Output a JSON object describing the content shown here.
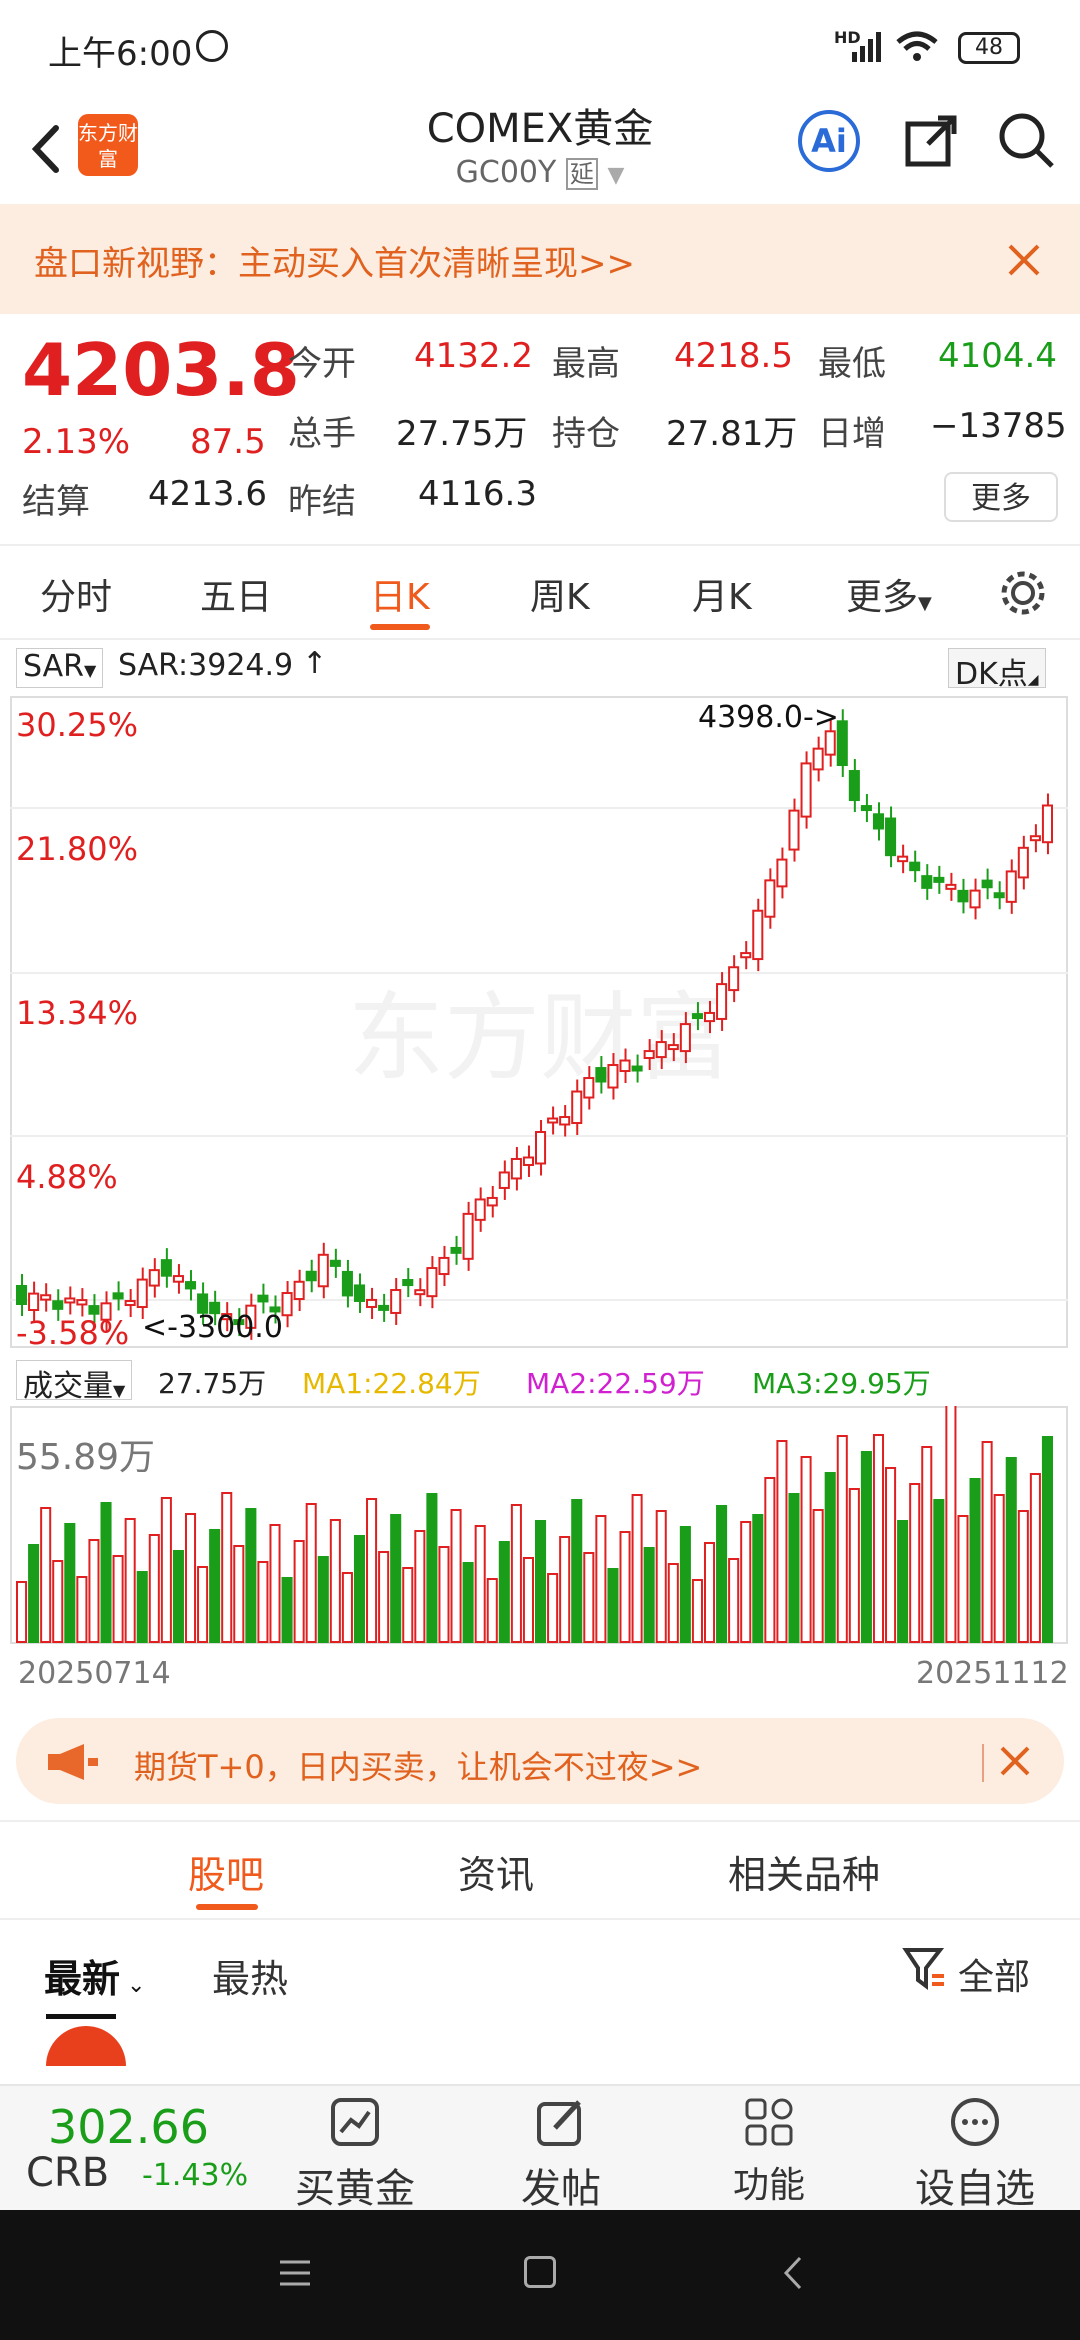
{
  "status_bar": {
    "time": "上午6:00",
    "signal": "HD",
    "battery": "48"
  },
  "header": {
    "logo_text": "东方财富",
    "title": "COMEX黄金",
    "code": "GC00Y",
    "delay_badge": "延",
    "ai_label": "Ai"
  },
  "banner": {
    "text": "盘口新视野：主动买入首次清晰呈现>>"
  },
  "quote": {
    "price": "4203.8",
    "change_pct": "2.13%",
    "change": "87.5",
    "open_label": "今开",
    "open": "4132.2",
    "high_label": "最高",
    "high": "4218.5",
    "low_label": "最低",
    "low": "4104.4",
    "volume_label": "总手",
    "volume": "27.75万",
    "oi_label": "持仓",
    "oi": "27.81万",
    "daily_inc_label": "日增",
    "daily_inc": "−13785",
    "settle_label": "结算",
    "settle": "4213.6",
    "prev_settle_label": "昨结",
    "prev_settle": "4116.3",
    "more": "更多"
  },
  "tabs": [
    {
      "label": "分时"
    },
    {
      "label": "五日"
    },
    {
      "label": "日K"
    },
    {
      "label": "周K"
    },
    {
      "label": "月K"
    },
    {
      "label": "更多"
    }
  ],
  "chart": {
    "indicator": "SAR",
    "sar_value": "SAR:3924.9",
    "dk_label": "DK点",
    "pct_labels": [
      "30.25%",
      "21.80%",
      "13.34%",
      "4.88%",
      "-3.58%"
    ],
    "high_mark": "4398.0->",
    "low_mark": "<-3300.0",
    "watermark": "东方财富",
    "vol_indicator": "成交量",
    "vol_value": "27.75万",
    "ma1": "MA1:22.84万",
    "ma2": "MA2:22.59万",
    "ma3": "MA3:29.95万",
    "vol_max": "55.89万",
    "date_start": "20250714",
    "date_end": "20251112",
    "colors": {
      "up": "#e02020",
      "down": "#1a9e1a",
      "ma1": "#e6b800",
      "ma2": "#d020d0",
      "ma3": "#1a9e1a"
    }
  },
  "ad": {
    "text": "期货T+0，日内买卖，让机会不过夜>>"
  },
  "community_tabs": [
    {
      "label": "股吧"
    },
    {
      "label": "资讯"
    },
    {
      "label": "相关品种"
    }
  ],
  "filter": {
    "latest": "最新",
    "hottest": "最热",
    "all": "全部"
  },
  "bottom_nav": {
    "crb_value": "302.66",
    "crb_label": "CRB",
    "crb_change": "-1.43%",
    "items": [
      {
        "label": "买黄金"
      },
      {
        "label": "发帖"
      },
      {
        "label": "功能"
      },
      {
        "label": "设自选"
      }
    ]
  }
}
